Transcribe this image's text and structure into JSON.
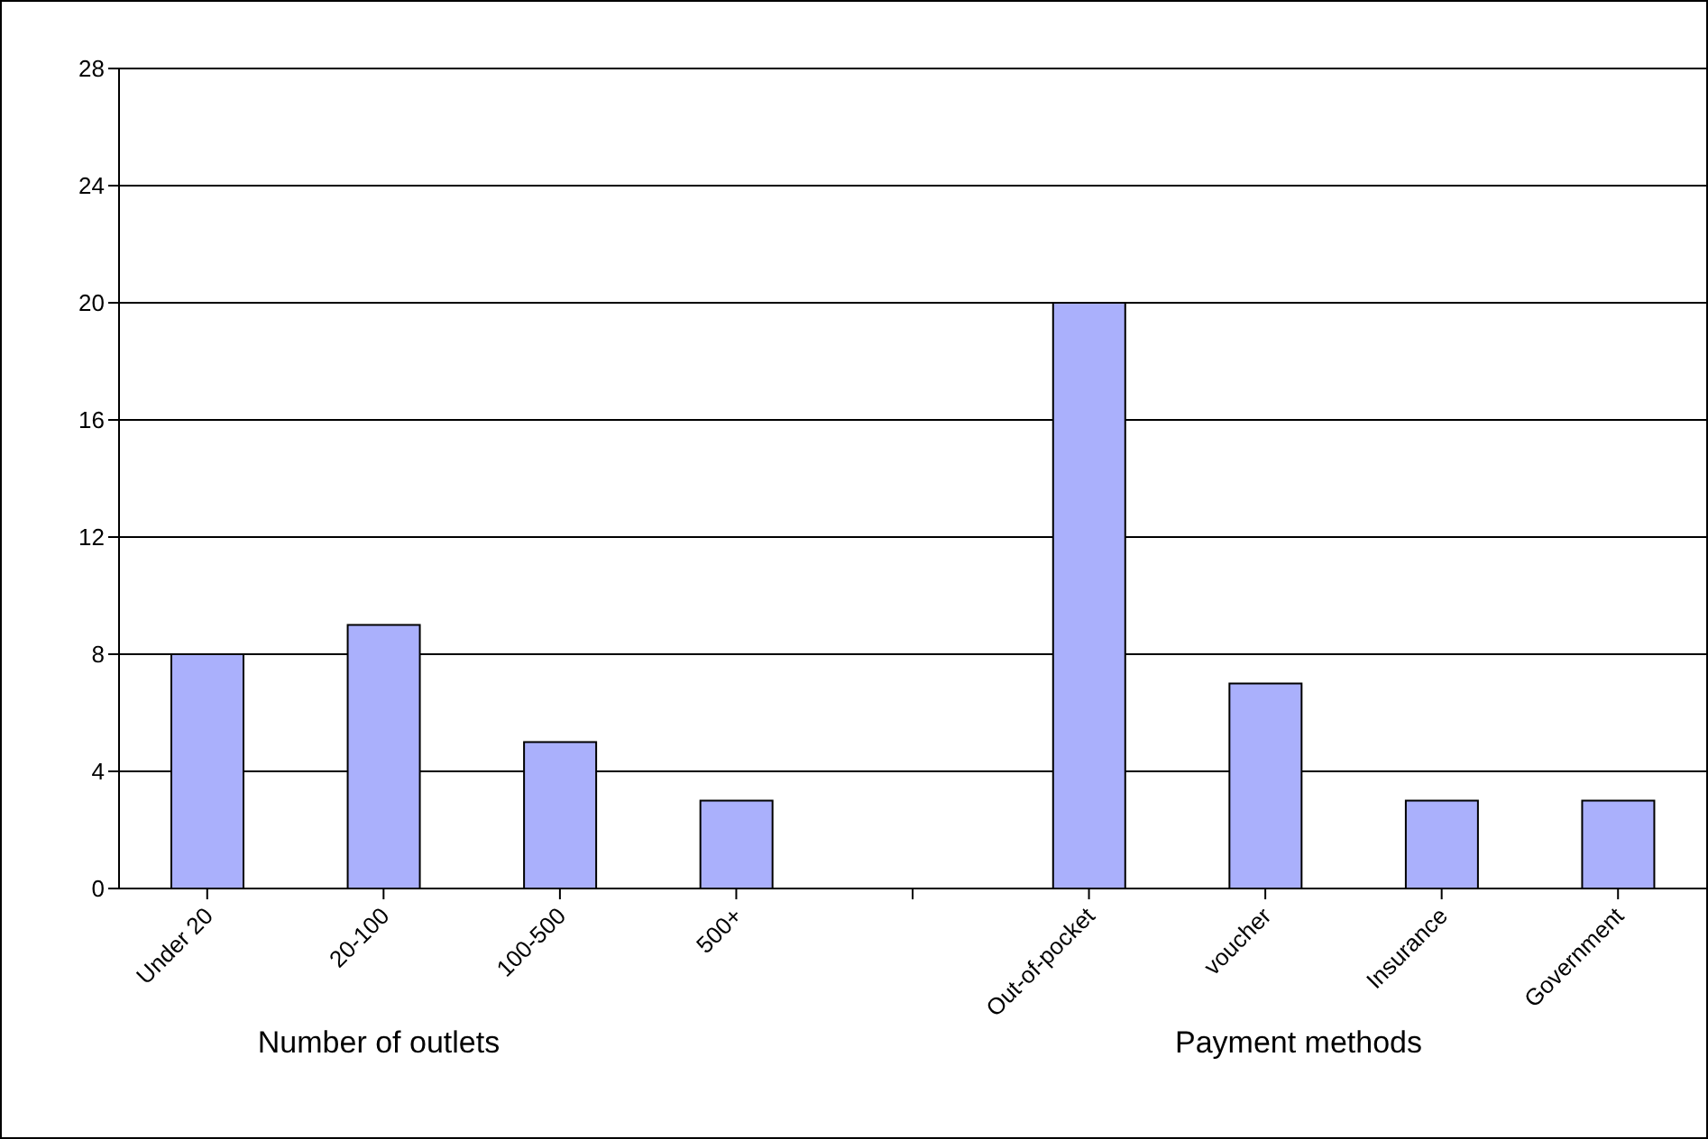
{
  "chart_data": {
    "type": "bar",
    "categories": [
      "Under 20",
      "20-100",
      "100-500",
      "500+",
      null,
      "Out-of-pocket",
      "voucher",
      "Insurance",
      "Government"
    ],
    "values": [
      8,
      9,
      5,
      3,
      null,
      20,
      7,
      3,
      3
    ],
    "color": "#aab0fc",
    "ylim": [
      0,
      28
    ],
    "yticks": [
      0,
      4,
      8,
      12,
      16,
      20,
      24,
      28
    ],
    "grid": "y",
    "legend": false,
    "annotations": [
      "Number of outlets",
      "Payment methods"
    ]
  }
}
